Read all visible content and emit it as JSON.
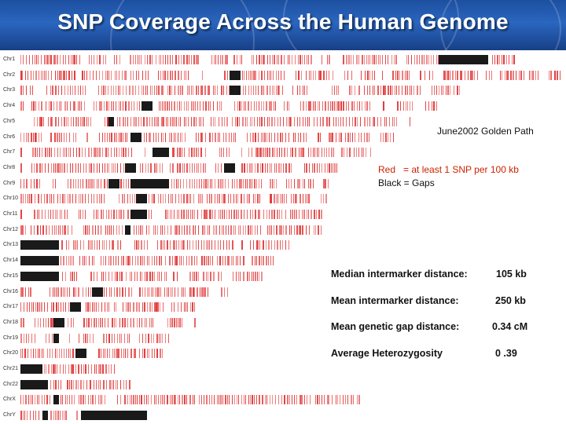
{
  "title": "SNP Coverage Across the Human Genome",
  "source_note": "June2002 Golden Path",
  "legend": {
    "red": "Red   = at least 1 SNP per 100 kb",
    "black": "Black = Gaps"
  },
  "colors": {
    "snp": "#e23a3a",
    "gap": "#1a1a1a",
    "header": "#2a66bf"
  },
  "chromosomes": [
    {
      "label": "Chr1",
      "length": 0.9,
      "gaps": [
        [
          0.76,
          0.85
        ]
      ]
    },
    {
      "label": "Chr2",
      "length": 0.98,
      "gaps": [
        [
          0.38,
          0.4
        ]
      ]
    },
    {
      "label": "Chr3",
      "length": 0.8,
      "gaps": [
        [
          0.38,
          0.4
        ]
      ]
    },
    {
      "label": "Chr4",
      "length": 0.76,
      "gaps": [
        [
          0.22,
          0.24
        ]
      ]
    },
    {
      "label": "Chr5",
      "length": 0.72,
      "gaps": [
        [
          0.16,
          0.17
        ]
      ]
    },
    {
      "label": "Chr6",
      "length": 0.68,
      "gaps": [
        [
          0.2,
          0.22
        ]
      ]
    },
    {
      "label": "Chr7",
      "length": 0.64,
      "gaps": [
        [
          0.24,
          0.27
        ]
      ]
    },
    {
      "label": "Chr8",
      "length": 0.58,
      "gaps": [
        [
          0.19,
          0.21
        ],
        [
          0.37,
          0.39
        ]
      ]
    },
    {
      "label": "Chr9",
      "length": 0.56,
      "gaps": [
        [
          0.16,
          0.18
        ],
        [
          0.2,
          0.27
        ]
      ]
    },
    {
      "label": "Chr10",
      "length": 0.56,
      "gaps": [
        [
          0.21,
          0.23
        ]
      ]
    },
    {
      "label": "Chr11",
      "length": 0.56,
      "gaps": [
        [
          0.2,
          0.23
        ]
      ]
    },
    {
      "label": "Chr12",
      "length": 0.55,
      "gaps": [
        [
          0.19,
          0.2
        ]
      ]
    },
    {
      "label": "Chr13",
      "length": 0.49,
      "gaps": [
        [
          0.0,
          0.07
        ]
      ]
    },
    {
      "label": "Chr14",
      "length": 0.46,
      "gaps": [
        [
          0.0,
          0.07
        ]
      ]
    },
    {
      "label": "Chr15",
      "length": 0.44,
      "gaps": [
        [
          0.0,
          0.07
        ]
      ]
    },
    {
      "label": "Chr16",
      "length": 0.38,
      "gaps": [
        [
          0.13,
          0.15
        ]
      ]
    },
    {
      "label": "Chr17",
      "length": 0.34,
      "gaps": [
        [
          0.09,
          0.11
        ]
      ]
    },
    {
      "label": "Chr18",
      "length": 0.32,
      "gaps": [
        [
          0.06,
          0.08
        ]
      ]
    },
    {
      "label": "Chr19",
      "length": 0.27,
      "gaps": [
        [
          0.06,
          0.07
        ]
      ]
    },
    {
      "label": "Chr20",
      "length": 0.26,
      "gaps": [
        [
          0.1,
          0.12
        ]
      ]
    },
    {
      "label": "Chr21",
      "length": 0.18,
      "gaps": [
        [
          0.0,
          0.04
        ]
      ]
    },
    {
      "label": "Chr22",
      "length": 0.2,
      "gaps": [
        [
          0.0,
          0.05
        ]
      ]
    },
    {
      "label": "ChrX",
      "length": 0.62,
      "gaps": [
        [
          0.06,
          0.07
        ]
      ]
    },
    {
      "label": "ChrY",
      "length": 0.23,
      "gaps": [
        [
          0.04,
          0.05
        ],
        [
          0.11,
          0.23
        ]
      ]
    }
  ],
  "stats": [
    {
      "label": "Median intermarker distance:",
      "value": "105 kb"
    },
    {
      "label": "Mean intermarker distance:",
      "value": "250 kb"
    },
    {
      "label": "Mean genetic gap distance:",
      "value": "0.34 cM"
    },
    {
      "label": "Average Heterozygosity",
      "value": "0 .39"
    }
  ]
}
